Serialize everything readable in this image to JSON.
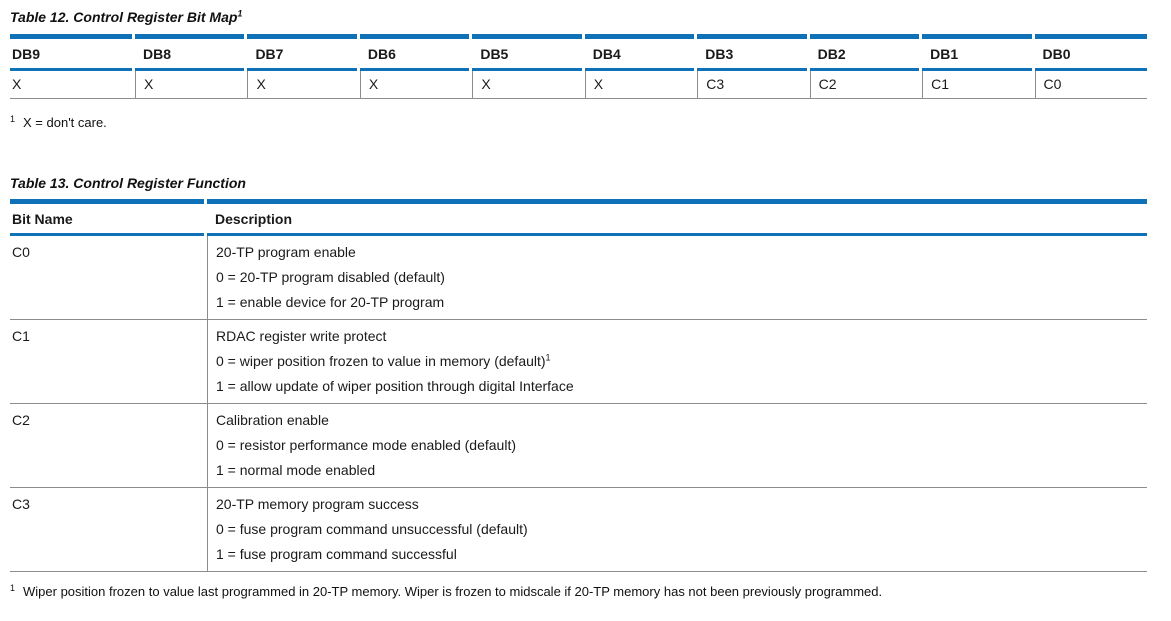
{
  "accent": {
    "blue": "#0f72b8",
    "rule_gray": "#8c8c8c"
  },
  "table12": {
    "title": "Table 12. Control Register Bit Map",
    "title_footnote_ref": "1",
    "columns": [
      "DB9",
      "DB8",
      "DB7",
      "DB6",
      "DB5",
      "DB4",
      "DB3",
      "DB2",
      "DB1",
      "DB0"
    ],
    "values": [
      "X",
      "X",
      "X",
      "X",
      "X",
      "X",
      "C3",
      "C2",
      "C1",
      "C0"
    ],
    "footnote": {
      "marker": "1",
      "text": "X = don't care."
    }
  },
  "table13": {
    "title": "Table 13. Control Register Function",
    "headers": [
      "Bit Name",
      "Description"
    ],
    "rows": [
      {
        "bit": "C0",
        "lines": [
          "20-TP program enable",
          "0 = 20-TP program disabled (default)",
          "1 = enable device for 20-TP program"
        ]
      },
      {
        "bit": "C1",
        "lines": [
          "RDAC register write protect",
          "0 = wiper position frozen to value in memory (default)",
          "1 = allow update of wiper position through digital Interface"
        ],
        "line2_sup": "1"
      },
      {
        "bit": "C2",
        "lines": [
          "Calibration enable",
          "0 = resistor performance mode enabled (default)",
          "1 = normal mode enabled"
        ]
      },
      {
        "bit": "C3",
        "lines": [
          "20-TP memory program success",
          "0 = fuse program command unsuccessful (default)",
          "1 = fuse program command successful"
        ]
      }
    ],
    "footnote": {
      "marker": "1",
      "text": "Wiper position frozen to value last programmed in 20-TP memory. Wiper is frozen to midscale if 20-TP memory has not been previously programmed."
    }
  }
}
